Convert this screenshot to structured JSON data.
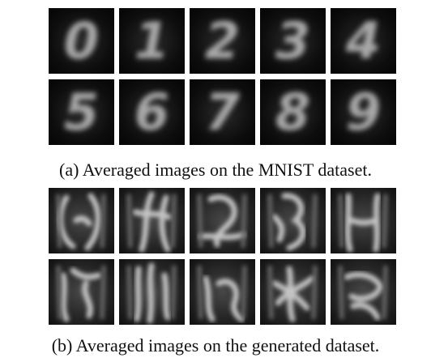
{
  "figure": {
    "panel_a": {
      "caption": "(a) Averaged images on the MNIST dataset.",
      "tiles": [
        {
          "digit": "0"
        },
        {
          "digit": "1"
        },
        {
          "digit": "2"
        },
        {
          "digit": "3"
        },
        {
          "digit": "4"
        },
        {
          "digit": "5"
        },
        {
          "digit": "6"
        },
        {
          "digit": "7"
        },
        {
          "digit": "8"
        },
        {
          "digit": "9"
        }
      ]
    },
    "panel_b": {
      "caption": "(b) Averaged images on the generated dataset.",
      "tile_count": 10
    }
  }
}
